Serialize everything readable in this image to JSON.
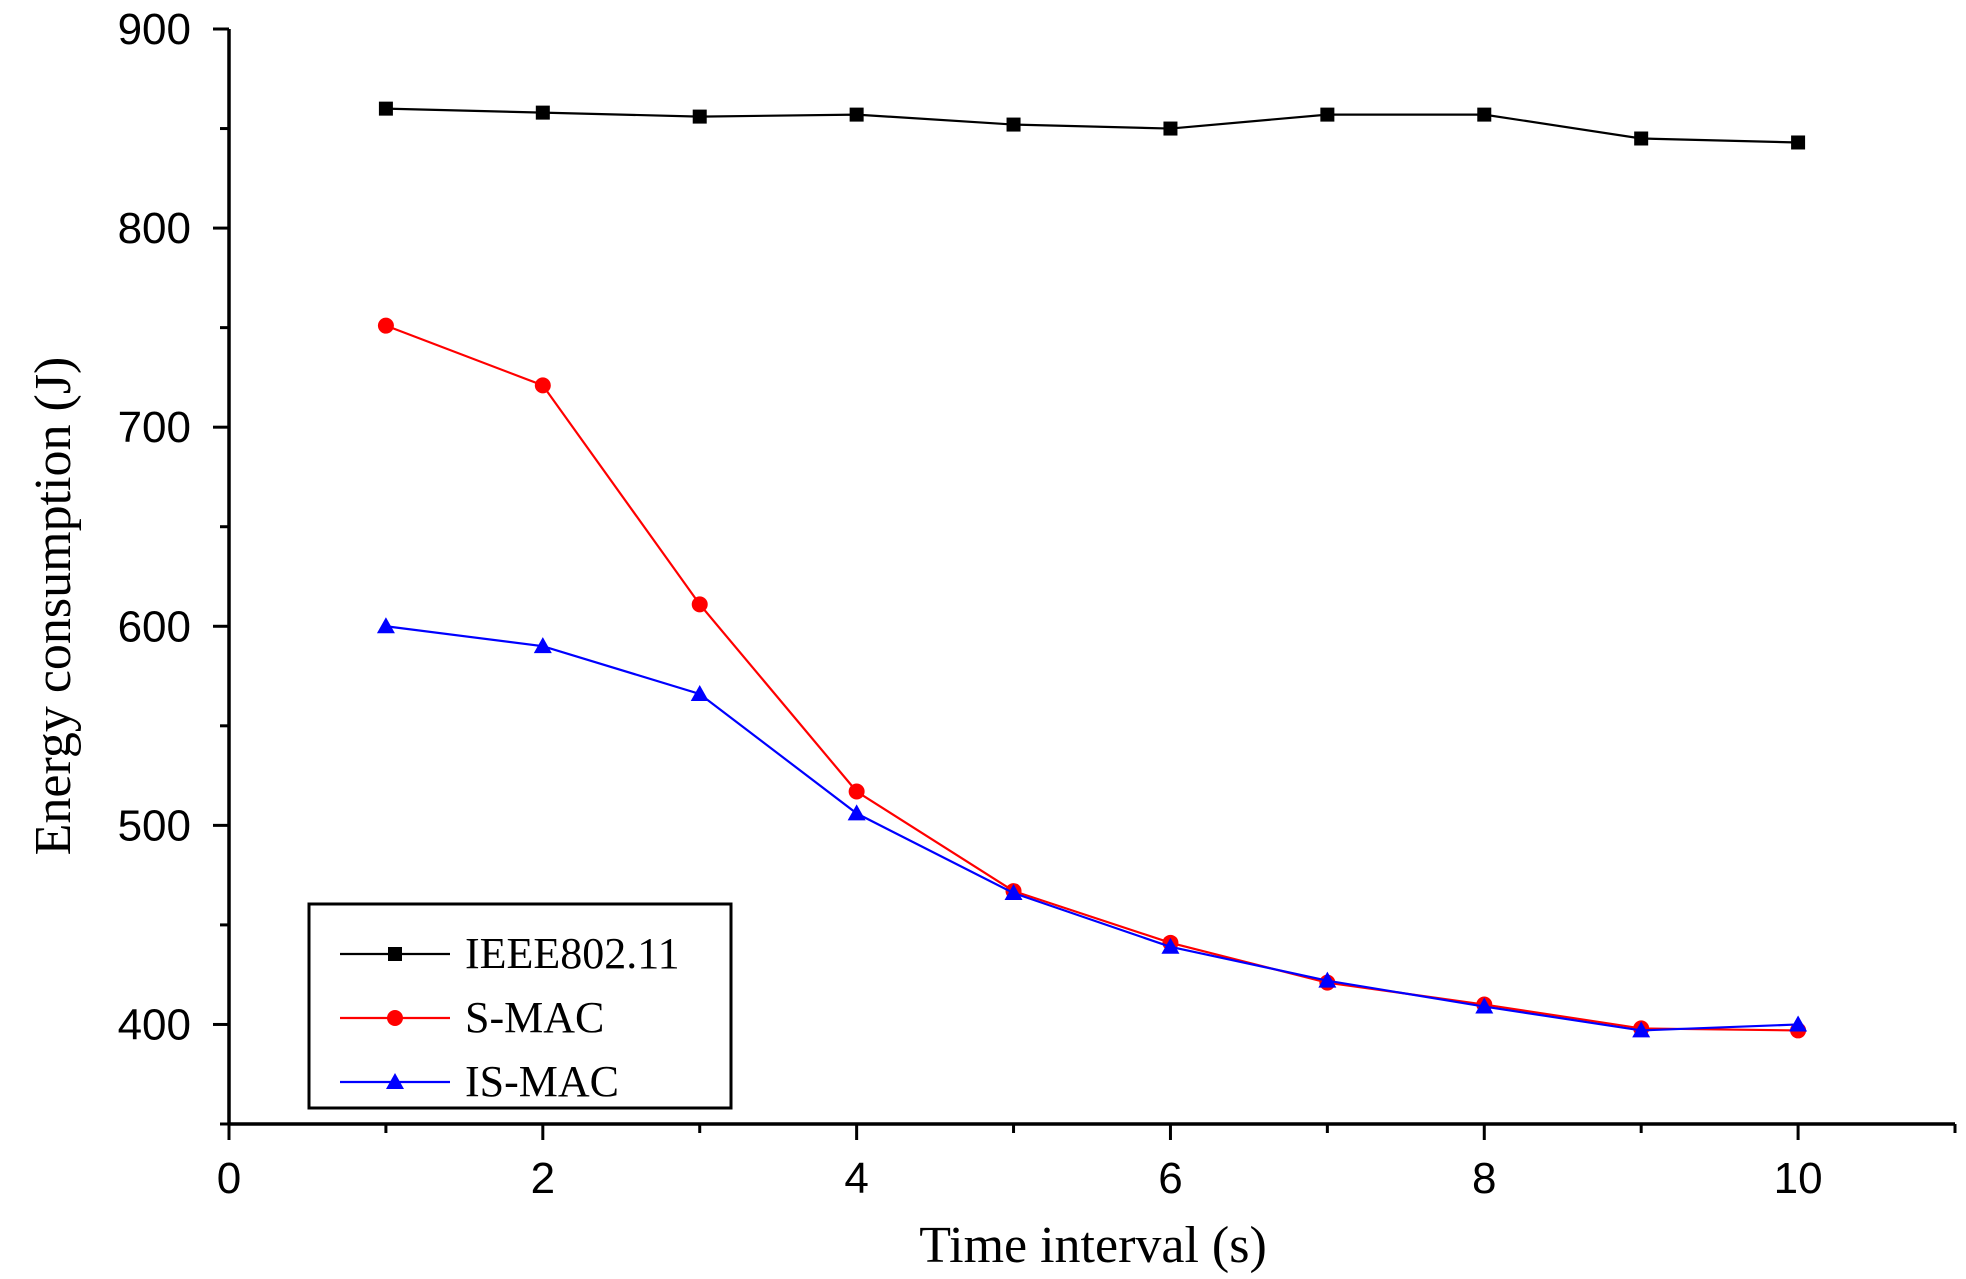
{
  "chart_data": {
    "type": "line",
    "title": "",
    "xlabel": "Time interval (s)",
    "ylabel": "Energy consumption (J)",
    "xlim": [
      0,
      11
    ],
    "ylim": [
      350,
      900
    ],
    "x_ticks": [
      0,
      2,
      4,
      6,
      8,
      10
    ],
    "x_tick_labels": [
      "0",
      "2",
      "4",
      "6",
      "8",
      "10"
    ],
    "x_minor_ticks": [
      1,
      3,
      5,
      7,
      9,
      11
    ],
    "y_ticks": [
      400,
      500,
      600,
      700,
      800,
      900
    ],
    "y_tick_labels": [
      "400",
      "500",
      "600",
      "700",
      "800",
      "900"
    ],
    "y_minor_ticks": [
      350,
      450,
      550,
      650,
      750,
      850
    ],
    "grid": false,
    "legend_position": "bottom-left",
    "x": [
      1,
      2,
      3,
      4,
      5,
      6,
      7,
      8,
      9,
      10
    ],
    "series": [
      {
        "name": "IEEE802.11",
        "color": "#000000",
        "marker": "square",
        "values": [
          860,
          858,
          856,
          857,
          852,
          850,
          857,
          857,
          845,
          843
        ]
      },
      {
        "name": "S-MAC",
        "color": "#ff0000",
        "marker": "circle",
        "values": [
          751,
          721,
          611,
          517,
          467,
          441,
          421,
          410,
          398,
          397
        ]
      },
      {
        "name": "IS-MAC",
        "color": "#0000ff",
        "marker": "triangle",
        "values": [
          600,
          590,
          566,
          506,
          466,
          439,
          422,
          409,
          397,
          400
        ]
      }
    ]
  }
}
